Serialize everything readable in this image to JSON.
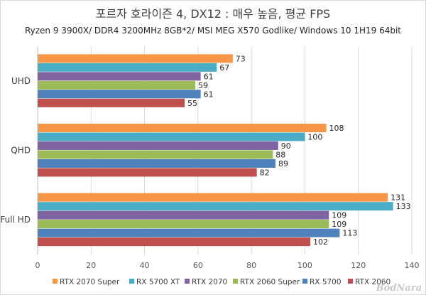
{
  "chart_data": {
    "type": "bar",
    "orientation": "horizontal",
    "title": "포르자 호라이즌 4, DX12 : 매우 높음, 평균 FPS",
    "subtitle": "Ryzen 9 3900X/ DDR4 3200MHz 8GB*2/ MSI MEG X570 Godlike/ Windows 10 1H19 64bit",
    "categories": [
      "UHD",
      "QHD",
      "Full HD"
    ],
    "series": [
      {
        "name": "RTX 2070 Super",
        "color": "#f79646",
        "values": [
          73,
          108,
          131
        ]
      },
      {
        "name": "RX 5700 XT",
        "color": "#4bacc6",
        "values": [
          67,
          100,
          133
        ]
      },
      {
        "name": "RTX 2070",
        "color": "#8064a2",
        "values": [
          61,
          90,
          109
        ]
      },
      {
        "name": "RTX 2060 Super",
        "color": "#9bbb59",
        "values": [
          59,
          88,
          109
        ]
      },
      {
        "name": "RX 5700",
        "color": "#4f81bd",
        "values": [
          61,
          89,
          113
        ]
      },
      {
        "name": "RTX 2060",
        "color": "#c0504d",
        "values": [
          55,
          82,
          102
        ]
      }
    ],
    "xlim": [
      0,
      140
    ],
    "xticks": [
      0,
      20,
      40,
      60,
      80,
      100,
      120,
      140
    ],
    "grid": true,
    "legend": "bottom"
  },
  "watermark": "BodNara"
}
